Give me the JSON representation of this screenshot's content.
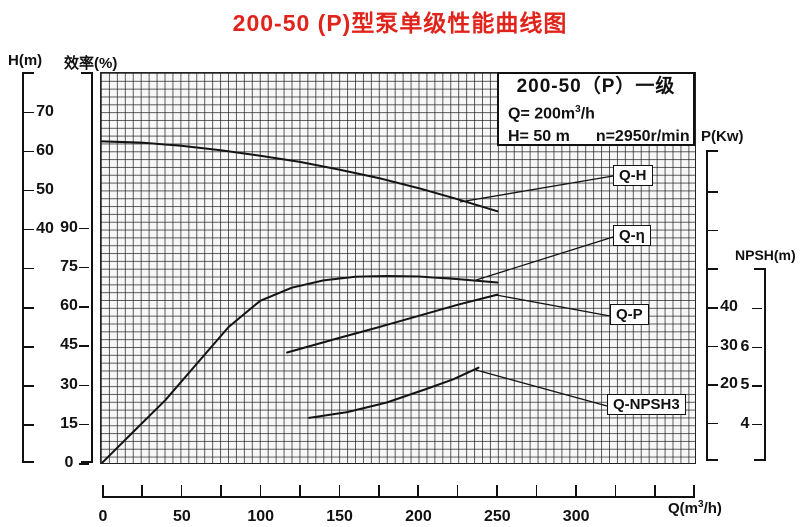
{
  "title": {
    "text": "200-50 (P)型泵单级性能曲线图",
    "color": "#e0241b"
  },
  "info_box": {
    "title": "200-50（P）一级",
    "q_prefix": "Q= 200m",
    "q_sup": "3",
    "q_suffix": "/h",
    "h_text": "H= 50 m",
    "n_text": "n=2950r/min"
  },
  "axis_titles": {
    "h": "H(m)",
    "eff": "效率(%)",
    "p": "P(Kw)",
    "npsh": "NPSH(m)",
    "q_prefix": "Q(m",
    "q_sup": "3",
    "q_suffix": "/h)"
  },
  "axes": {
    "h_axis": {
      "tick_labels": [
        "70",
        "60",
        "50",
        "40",
        "",
        "",
        "",
        "",
        ""
      ]
    },
    "eff_axis": {
      "tick_labels": [
        "90",
        "75",
        "60",
        "45",
        "30",
        "15",
        "0"
      ]
    },
    "p_axis": {
      "tick_labels": [
        "",
        "",
        "",
        "40",
        "30",
        "20",
        ""
      ]
    },
    "npsh_axis": {
      "tick_labels": [
        "",
        "6",
        "5",
        "4"
      ]
    },
    "q_axis": {
      "tick_labels": [
        "0",
        "",
        "50",
        "",
        "100",
        "",
        "150",
        "",
        "200",
        "",
        "250",
        "",
        "300",
        "",
        "",
        ""
      ]
    }
  },
  "curve_labels": [
    {
      "text": "Q-H"
    },
    {
      "text": "Q-η"
    },
    {
      "text": "Q-P"
    },
    {
      "text": "Q-NPSH3"
    }
  ],
  "chart_data": {
    "type": "line",
    "title": "200-50 (P)型泵单级性能曲线图",
    "x_axis": {
      "label": "Q(m³/h)",
      "range": [
        0,
        375
      ],
      "major_tick_step": 50,
      "minor_tick_step": 25
    },
    "y_axes": [
      {
        "id": "H",
        "label": "H(m)",
        "visible_ticks": [
          70,
          60,
          50,
          40
        ]
      },
      {
        "id": "eff",
        "label": "效率(%)",
        "visible_ticks": [
          90,
          75,
          60,
          45,
          30,
          15,
          0
        ]
      },
      {
        "id": "P",
        "label": "P(Kw)",
        "visible_ticks": [
          40,
          30,
          20
        ]
      },
      {
        "id": "NPSH",
        "label": "NPSH(m)",
        "visible_ticks": [
          6,
          5,
          4
        ]
      }
    ],
    "series": [
      {
        "name": "Q-H",
        "axis": "H",
        "points": [
          [
            0,
            62.3
          ],
          [
            25,
            62.0
          ],
          [
            50,
            61.2
          ],
          [
            75,
            60.0
          ],
          [
            100,
            58.6
          ],
          [
            125,
            57.0
          ],
          [
            150,
            55.0
          ],
          [
            175,
            52.8
          ],
          [
            200,
            50.2
          ],
          [
            225,
            47.3
          ],
          [
            250,
            44.2
          ]
        ]
      },
      {
        "name": "Q-η",
        "axis": "eff",
        "points": [
          [
            0,
            0
          ],
          [
            20,
            12
          ],
          [
            40,
            24
          ],
          [
            60,
            38
          ],
          [
            80,
            52
          ],
          [
            100,
            62
          ],
          [
            120,
            67
          ],
          [
            140,
            69.8
          ],
          [
            160,
            71.2
          ],
          [
            180,
            71.5
          ],
          [
            200,
            71.3
          ],
          [
            225,
            70.3
          ],
          [
            250,
            69
          ]
        ]
      },
      {
        "name": "Q-P",
        "axis": "P",
        "points": [
          [
            117,
            28.2
          ],
          [
            150,
            32.0
          ],
          [
            175,
            34.8
          ],
          [
            200,
            37.7
          ],
          [
            225,
            40.6
          ],
          [
            250,
            43.2
          ]
        ]
      },
      {
        "name": "Q-NPSH3",
        "axis": "NPSH",
        "points": [
          [
            131,
            4.15
          ],
          [
            155,
            4.3
          ],
          [
            180,
            4.55
          ],
          [
            205,
            4.9
          ],
          [
            222,
            5.15
          ],
          [
            238,
            5.45
          ]
        ]
      }
    ],
    "operating_point": {
      "Q": "200m³/h",
      "H": "50 m",
      "n": "2950r/min"
    },
    "grid": true,
    "legend_position": "inline-boxes"
  }
}
